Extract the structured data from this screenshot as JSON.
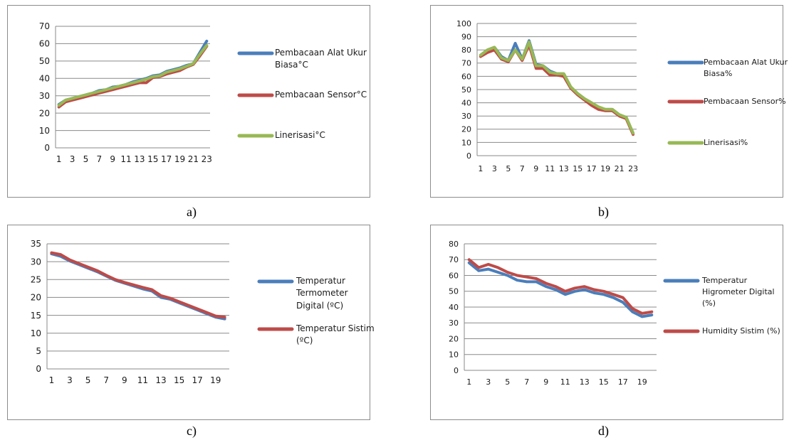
{
  "captions": [
    "a)",
    "b)",
    "c)",
    "d)"
  ],
  "chart_data": [
    {
      "type": "line",
      "x": [
        1,
        2,
        3,
        4,
        5,
        6,
        7,
        8,
        9,
        10,
        11,
        12,
        13,
        14,
        15,
        16,
        17,
        18,
        19,
        20,
        21,
        22,
        23
      ],
      "xticks": [
        "1",
        "3",
        "5",
        "7",
        "9",
        "11",
        "13",
        "15",
        "17",
        "19",
        "21",
        "23"
      ],
      "ylim": [
        0,
        70
      ],
      "yticks": [
        0,
        10,
        20,
        30,
        40,
        50,
        60,
        70
      ],
      "grid": true,
      "legend_position": "right",
      "series": [
        {
          "name": "Pembacaan Alat Ukur Biasa°C",
          "color": "#4a7ebb",
          "values": [
            25,
            27.5,
            28.5,
            29.5,
            30.5,
            31.5,
            33,
            33.5,
            35,
            35.5,
            36.5,
            38,
            39,
            40,
            41.5,
            42,
            44,
            45,
            46,
            47.5,
            48.5,
            55,
            61.5
          ]
        },
        {
          "name": "Pembacaan Sensor°C",
          "color": "#be4b48",
          "values": [
            23.5,
            26.5,
            27.5,
            28.5,
            29.5,
            30.5,
            31.5,
            32.5,
            33.5,
            34.5,
            35.5,
            36.5,
            37.5,
            37.5,
            40.5,
            41,
            42.5,
            43.5,
            44.5,
            46.5,
            48,
            53,
            58.5
          ]
        },
        {
          "name": "Linerisasi°C",
          "color": "#98b954",
          "values": [
            24.5,
            27.5,
            28.5,
            29.5,
            30.5,
            31.5,
            32.5,
            33.5,
            34.5,
            35.5,
            36.5,
            37.5,
            38.5,
            39.5,
            41,
            41.5,
            43.5,
            44.5,
            45.5,
            47,
            48.5,
            54,
            59
          ]
        }
      ]
    },
    {
      "type": "line",
      "x": [
        1,
        2,
        3,
        4,
        5,
        6,
        7,
        8,
        9,
        10,
        11,
        12,
        13,
        14,
        15,
        16,
        17,
        18,
        19,
        20,
        21,
        22,
        23
      ],
      "xticks": [
        "1",
        "3",
        "5",
        "7",
        "9",
        "11",
        "13",
        "15",
        "17",
        "19",
        "21",
        "23"
      ],
      "ylim": [
        0,
        100
      ],
      "yticks": [
        0,
        10,
        20,
        30,
        40,
        50,
        60,
        70,
        80,
        90,
        100
      ],
      "grid": true,
      "legend_position": "right",
      "series": [
        {
          "name": "Pembacaan Alat Ukur Biasa%",
          "color": "#4a7ebb",
          "values": [
            76,
            80,
            82,
            75,
            72,
            85,
            73,
            87,
            69,
            68,
            64,
            62,
            62,
            52,
            47,
            43,
            40,
            36,
            35,
            35,
            31,
            29,
            17
          ]
        },
        {
          "name": "Pembacaan Sensor%",
          "color": "#be4b48",
          "values": [
            75,
            78,
            80,
            73,
            71,
            80,
            72,
            84,
            66,
            66,
            61,
            61,
            60,
            51,
            46,
            42,
            38,
            35,
            34,
            34,
            30,
            28,
            16
          ]
        },
        {
          "name": "Linerisasi%",
          "color": "#98b954",
          "values": [
            76,
            80,
            82,
            74,
            72,
            80,
            73,
            86,
            68,
            68,
            63,
            62,
            62,
            52,
            47,
            43,
            40,
            37,
            35,
            35,
            31,
            29,
            17
          ]
        }
      ]
    },
    {
      "type": "line",
      "x": [
        1,
        2,
        3,
        4,
        5,
        6,
        7,
        8,
        9,
        10,
        11,
        12,
        13,
        14,
        15,
        16,
        17,
        18,
        19,
        20
      ],
      "xticks": [
        "1",
        "3",
        "5",
        "7",
        "9",
        "11",
        "13",
        "15",
        "17",
        "19"
      ],
      "ylim": [
        0,
        35
      ],
      "yticks": [
        0,
        5,
        10,
        15,
        20,
        25,
        30,
        35
      ],
      "grid": true,
      "legend_position": "right",
      "series": [
        {
          "name": "Temperatur Termometer Digital (ºC)",
          "color": "#4a7ebb",
          "values": [
            32.2,
            31.5,
            30.2,
            29.2,
            28.2,
            27.2,
            26,
            24.8,
            24,
            23.2,
            22.4,
            21.8,
            20,
            19.5,
            18.5,
            17.5,
            16.5,
            15.5,
            14.5,
            14
          ]
        },
        {
          "name": "Temperatur Sistim (ºC)",
          "color": "#be4b48",
          "values": [
            32.5,
            32,
            30.5,
            29.5,
            28.5,
            27.5,
            26.2,
            25,
            24.2,
            23.5,
            22.8,
            22.2,
            20.5,
            19.8,
            18.8,
            17.8,
            16.8,
            15.8,
            14.8,
            14.5
          ]
        }
      ]
    },
    {
      "type": "line",
      "x": [
        1,
        2,
        3,
        4,
        5,
        6,
        7,
        8,
        9,
        10,
        11,
        12,
        13,
        14,
        15,
        16,
        17,
        18,
        19,
        20
      ],
      "xticks": [
        "1",
        "3",
        "5",
        "7",
        "9",
        "11",
        "13",
        "15",
        "17",
        "19"
      ],
      "ylim": [
        0,
        80
      ],
      "yticks": [
        0,
        10,
        20,
        30,
        40,
        50,
        60,
        70,
        80
      ],
      "grid": true,
      "legend_position": "right",
      "series": [
        {
          "name": "Temperatur Higrometer Digital (%)",
          "color": "#4a7ebb",
          "values": [
            68,
            63,
            64,
            62,
            60,
            57,
            56,
            56,
            53,
            51,
            48,
            50,
            51,
            49,
            48,
            46,
            43,
            37,
            34,
            35
          ]
        },
        {
          "name": "Humidity Sistim (%)",
          "color": "#be4b48",
          "values": [
            70,
            65,
            67,
            65,
            62,
            60,
            59,
            58,
            55,
            53,
            50,
            52,
            53,
            51,
            50,
            48,
            46,
            39,
            36,
            37
          ]
        }
      ]
    }
  ]
}
